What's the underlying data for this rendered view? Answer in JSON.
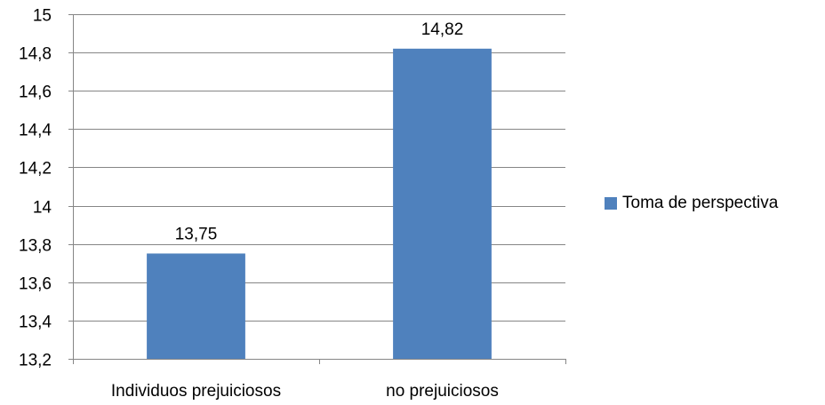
{
  "chart_data": {
    "type": "bar",
    "title": "",
    "xlabel": "",
    "ylabel": "",
    "categories": [
      "Individuos prejuiciosos",
      "no prejuiciosos"
    ],
    "series": [
      {
        "name": "Toma de perspectiva",
        "values": [
          13.75,
          14.82
        ],
        "value_labels": [
          "13,75",
          "14,82"
        ],
        "color": "#4f81bd"
      }
    ],
    "ylim": [
      13.2,
      15
    ],
    "yticks": [
      13.2,
      13.4,
      13.6,
      13.8,
      14,
      14.2,
      14.4,
      14.6,
      14.8,
      15
    ],
    "ytick_labels": [
      "13,2",
      "13,4",
      "13,6",
      "13,8",
      "14",
      "14,2",
      "14,4",
      "14,6",
      "14,8",
      "15"
    ],
    "grid": true,
    "legend_position": "right",
    "colors": {
      "gridline": "#868686",
      "axis": "#868686",
      "bar": "#4f81bd"
    }
  }
}
